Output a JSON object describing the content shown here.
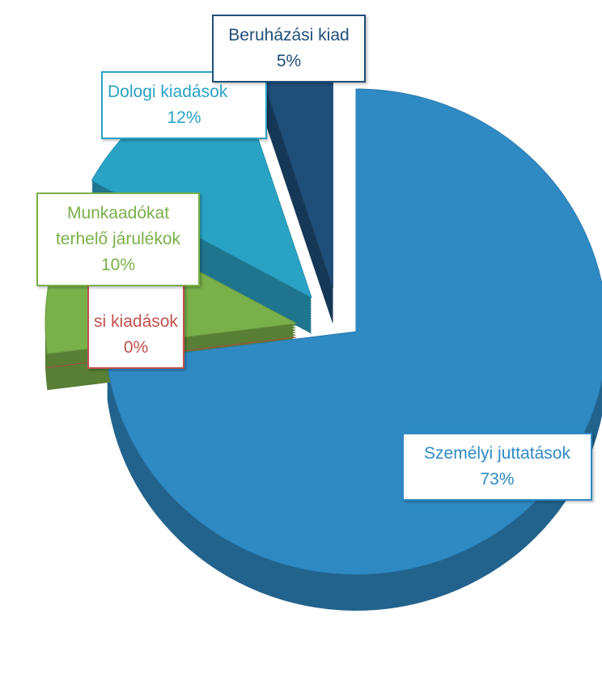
{
  "chart_data": {
    "type": "pie",
    "categories": [
      "Személyi juttatások",
      "si kiadások",
      "Munkaadókat terhelő járulékok",
      "Dologi kiadások",
      "Beruházási kiad"
    ],
    "values": [
      73,
      0,
      10,
      12,
      5
    ],
    "value_labels": [
      "73%",
      "0%",
      "10%",
      "12%",
      "5%"
    ],
    "colors": [
      "#2f8ac4",
      "#c0504d",
      "#7ab04a",
      "#2aa2c4",
      "#1f4e79"
    ]
  }
}
